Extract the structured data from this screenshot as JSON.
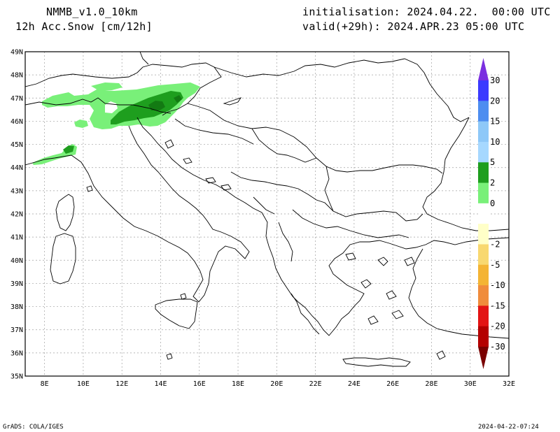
{
  "header": {
    "model": "NMMB_v1.0_10km",
    "variable": "12h Acc.Snow [cm/12h]",
    "init_label": "initialisation:",
    "init_value": "2024.04.22.  00:00 UTC",
    "valid_label": "valid(+29h):",
    "valid_value": "2024.APR.23 05:00 UTC"
  },
  "axes": {
    "lat_labels": [
      "49N",
      "48N",
      "47N",
      "46N",
      "45N",
      "44N",
      "43N",
      "42N",
      "41N",
      "40N",
      "39N",
      "38N",
      "37N",
      "36N",
      "35N"
    ],
    "lon_labels": [
      "8E",
      "10E",
      "12E",
      "14E",
      "16E",
      "18E",
      "20E",
      "22E",
      "24E",
      "26E",
      "28E",
      "30E",
      "32E"
    ]
  },
  "colorbar": {
    "labels": [
      "30",
      "20",
      "15",
      "10",
      "5",
      "2",
      "0",
      "-2",
      "-5",
      "-10",
      "-15",
      "-20",
      "-30"
    ],
    "colors": [
      "#7b2fe0",
      "#3b3bff",
      "#4d8df0",
      "#8ec8f8",
      "#a6d8ff",
      "#1e9e1e",
      "#79f079",
      "#ffffff",
      "#ffffc8",
      "#f8d870",
      "#f4b434",
      "#f08c3c",
      "#e31414",
      "#b40000",
      "#7a0000"
    ]
  },
  "snow_colors": {
    "light": "#79f079",
    "medium": "#1e9e1e",
    "heavy": "#137a13"
  },
  "footer": {
    "left": "GrADS: COLA/IGES",
    "right": "2024-04-22-07:24"
  }
}
